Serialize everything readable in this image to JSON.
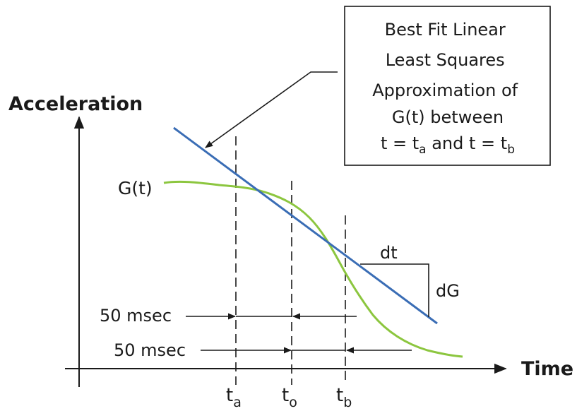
{
  "labels": {
    "y_axis": "Acceleration",
    "x_axis": "Time",
    "curve": "G(t)",
    "dt": "dt",
    "dG": "dG",
    "window_1": "50 msec",
    "window_2": "50 msec"
  },
  "time_markers": [
    {
      "base": "t",
      "sub": "a"
    },
    {
      "base": "t",
      "sub": "o"
    },
    {
      "base": "t",
      "sub": "b"
    }
  ],
  "callout": {
    "line_1": "Best Fit Linear",
    "line_2": "Least Squares",
    "line_3": "Approximation of",
    "line_4": "G(t) between",
    "line_5_a": "t = t",
    "line_5_a_sub": "a",
    "line_5_mid": " and t = t",
    "line_5_b_sub": "b"
  },
  "colors": {
    "curve": "#8cc63f",
    "fit_line": "#3a6db5",
    "ink": "#1a1a1a"
  }
}
